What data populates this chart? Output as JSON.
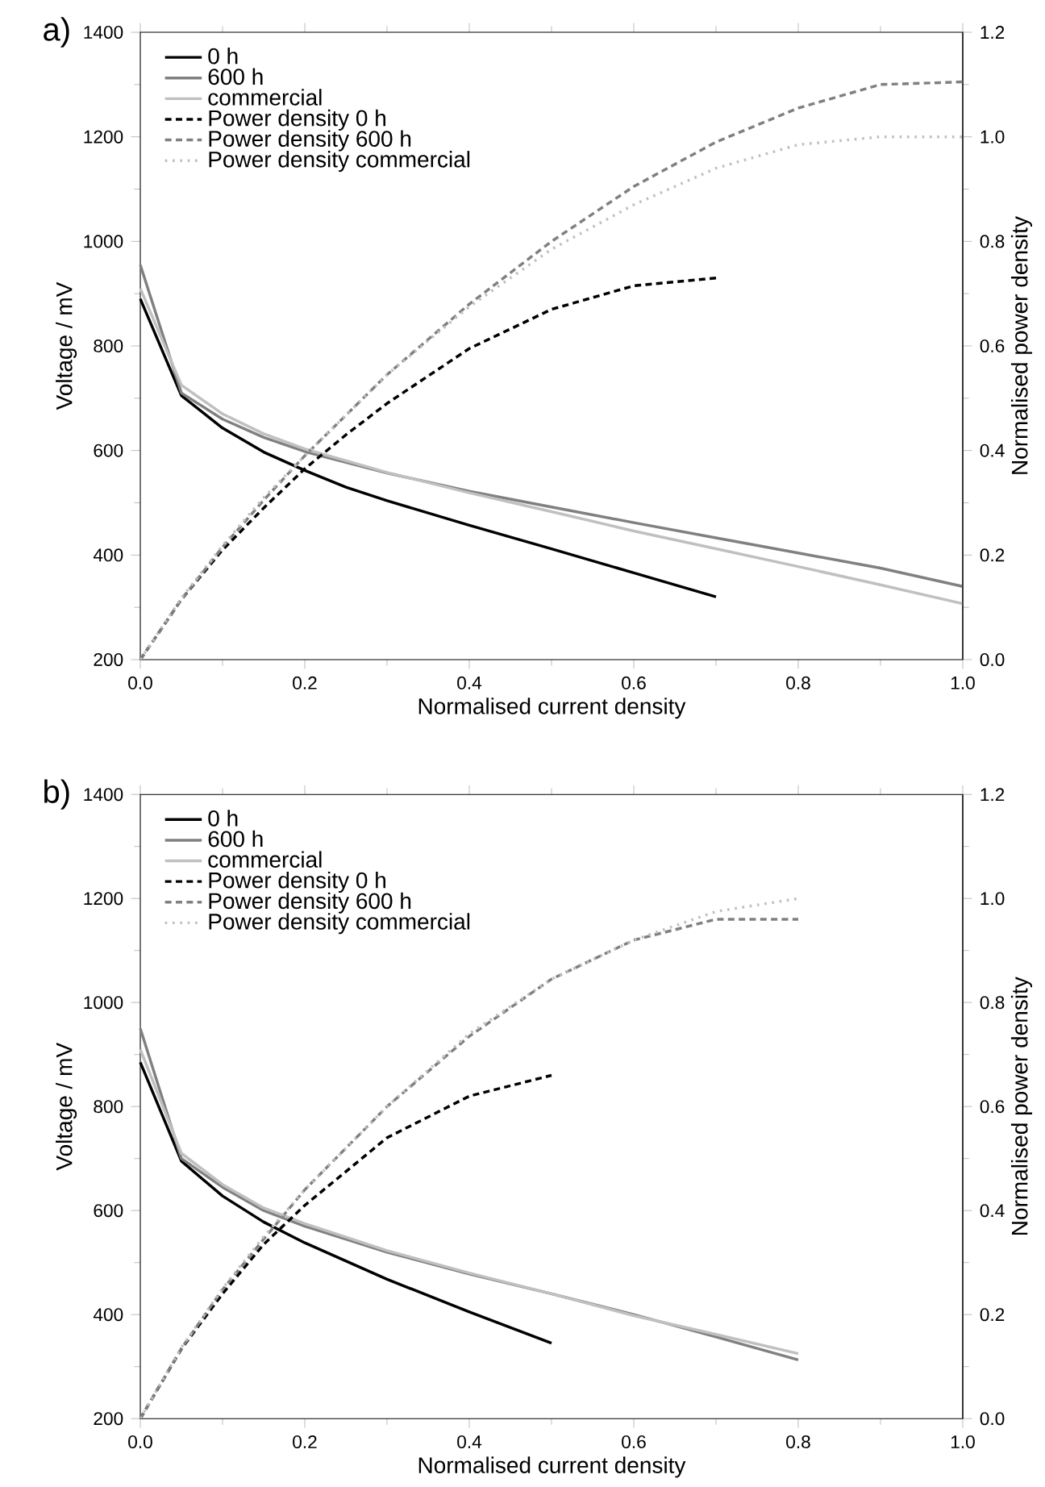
{
  "chart_data": [
    {
      "type": "line",
      "annotations": [
        "a)"
      ],
      "xlabel": "Normalised current density",
      "ylabel": "Voltage / mV",
      "y2label": "Normalised power density",
      "legend": "top left",
      "xlim": [
        0,
        1
      ],
      "ylim": [
        200,
        1400
      ],
      "y2lim": [
        0,
        1.2
      ],
      "xticks": [
        {
          "value": 0,
          "label": "0.0"
        },
        {
          "value": 0.2,
          "label": "0.2"
        },
        {
          "value": 0.4,
          "label": "0.4"
        },
        {
          "value": 0.6,
          "label": "0.6"
        },
        {
          "value": 0.8,
          "label": "0.8"
        },
        {
          "value": 1,
          "label": "1.0"
        }
      ],
      "yticks": [
        200,
        400,
        600,
        800,
        1000,
        1200,
        1400
      ],
      "y2ticks": [
        {
          "value": 0,
          "label": "0.0"
        },
        {
          "value": 0.2,
          "label": "0.2"
        },
        {
          "value": 0.4,
          "label": "0.4"
        },
        {
          "value": 0.6,
          "label": "0.6"
        },
        {
          "value": 0.8,
          "label": "0.8"
        },
        {
          "value": 1,
          "label": "1.0"
        },
        {
          "value": 1.2,
          "label": "1.2"
        }
      ],
      "series": [
        {
          "name": "0 h",
          "color": "#000000",
          "line_style": "solid",
          "x": [
            0,
            0.05,
            0.1,
            0.15,
            0.2,
            0.25,
            0.3,
            0.4,
            0.5,
            0.6,
            0.7
          ],
          "values": [
            890,
            705,
            643,
            597,
            562,
            530,
            504,
            457,
            412,
            366,
            320
          ]
        },
        {
          "name": "600 h",
          "color": "#808080",
          "line_style": "solid",
          "x": [
            0,
            0.05,
            0.1,
            0.15,
            0.2,
            0.3,
            0.4,
            0.5,
            0.6,
            0.7,
            0.8,
            0.9,
            1.0
          ],
          "values": [
            955,
            710,
            660,
            625,
            598,
            557,
            522,
            492,
            462,
            433,
            404,
            375,
            340
          ]
        },
        {
          "name": "commercial",
          "color": "#c0c0c0",
          "line_style": "solid",
          "x": [
            0,
            0.05,
            0.1,
            0.15,
            0.2,
            0.3,
            0.4,
            0.5,
            0.6,
            0.7,
            0.8,
            0.9,
            1.0
          ],
          "values": [
            910,
            725,
            670,
            632,
            603,
            558,
            519,
            483,
            446,
            412,
            378,
            343,
            307
          ]
        },
        {
          "name": "Power density 0 h",
          "color": "#000000",
          "line_style": "dashed",
          "axis": "y2",
          "x": [
            0,
            0.05,
            0.1,
            0.15,
            0.2,
            0.25,
            0.3,
            0.4,
            0.5,
            0.6,
            0.7
          ],
          "values": [
            0,
            0.115,
            0.21,
            0.29,
            0.365,
            0.43,
            0.49,
            0.595,
            0.67,
            0.715,
            0.73
          ]
        },
        {
          "name": "Power density 600 h",
          "color": "#808080",
          "line_style": "dashed",
          "axis": "y2",
          "x": [
            0,
            0.05,
            0.1,
            0.15,
            0.2,
            0.3,
            0.4,
            0.5,
            0.6,
            0.7,
            0.8,
            0.9,
            1.0
          ],
          "values": [
            0,
            0.115,
            0.215,
            0.305,
            0.39,
            0.545,
            0.68,
            0.8,
            0.905,
            0.99,
            1.055,
            1.1,
            1.105
          ]
        },
        {
          "name": "Power density commercial",
          "color": "#c0c0c0",
          "line_style": "dotted",
          "axis": "y2",
          "x": [
            0,
            0.05,
            0.1,
            0.15,
            0.2,
            0.3,
            0.4,
            0.5,
            0.6,
            0.7,
            0.8,
            0.9,
            1.0
          ],
          "values": [
            0,
            0.118,
            0.218,
            0.31,
            0.39,
            0.545,
            0.675,
            0.785,
            0.87,
            0.94,
            0.985,
            1.0,
            1.0
          ]
        }
      ]
    },
    {
      "type": "line",
      "annotations": [
        "b)"
      ],
      "xlabel": "Normalised current density",
      "ylabel": "Voltage / mV",
      "y2label": "Normalised power density",
      "legend": "top left",
      "xlim": [
        0,
        1
      ],
      "ylim": [
        200,
        1400
      ],
      "y2lim": [
        0,
        1.2
      ],
      "xticks": [
        {
          "value": 0,
          "label": "0.0"
        },
        {
          "value": 0.2,
          "label": "0.2"
        },
        {
          "value": 0.4,
          "label": "0.4"
        },
        {
          "value": 0.6,
          "label": "0.6"
        },
        {
          "value": 0.8,
          "label": "0.8"
        },
        {
          "value": 1,
          "label": "1.0"
        }
      ],
      "yticks": [
        200,
        400,
        600,
        800,
        1000,
        1200,
        1400
      ],
      "y2ticks": [
        {
          "value": 0,
          "label": "0.0"
        },
        {
          "value": 0.2,
          "label": "0.2"
        },
        {
          "value": 0.4,
          "label": "0.4"
        },
        {
          "value": 0.6,
          "label": "0.6"
        },
        {
          "value": 0.8,
          "label": "0.8"
        },
        {
          "value": 1,
          "label": "1.0"
        },
        {
          "value": 1.2,
          "label": "1.2"
        }
      ],
      "series": [
        {
          "name": "0 h",
          "color": "#000000",
          "line_style": "solid",
          "x": [
            0,
            0.05,
            0.1,
            0.15,
            0.2,
            0.3,
            0.4,
            0.5
          ],
          "values": [
            885,
            695,
            628,
            578,
            538,
            468,
            405,
            345
          ]
        },
        {
          "name": "600 h",
          "color": "#808080",
          "line_style": "solid",
          "x": [
            0,
            0.05,
            0.1,
            0.15,
            0.2,
            0.3,
            0.4,
            0.5,
            0.6,
            0.7,
            0.8
          ],
          "values": [
            950,
            700,
            645,
            600,
            570,
            520,
            478,
            440,
            400,
            357,
            313
          ]
        },
        {
          "name": "commercial",
          "color": "#c0c0c0",
          "line_style": "solid",
          "x": [
            0,
            0.05,
            0.1,
            0.15,
            0.2,
            0.3,
            0.4,
            0.5,
            0.6,
            0.7,
            0.8
          ],
          "values": [
            910,
            710,
            650,
            605,
            575,
            523,
            480,
            440,
            398,
            362,
            325
          ]
        },
        {
          "name": "Power density 0 h",
          "color": "#000000",
          "line_style": "dashed",
          "axis": "y2",
          "x": [
            0,
            0.05,
            0.1,
            0.15,
            0.2,
            0.3,
            0.4,
            0.5
          ],
          "values": [
            0,
            0.134,
            0.24,
            0.335,
            0.41,
            0.54,
            0.62,
            0.66
          ]
        },
        {
          "name": "Power density 600 h",
          "color": "#808080",
          "line_style": "dashed",
          "axis": "y2",
          "x": [
            0,
            0.05,
            0.1,
            0.15,
            0.2,
            0.3,
            0.4,
            0.5,
            0.6,
            0.7,
            0.8
          ],
          "values": [
            0,
            0.135,
            0.248,
            0.345,
            0.44,
            0.6,
            0.735,
            0.845,
            0.92,
            0.96,
            0.96
          ]
        },
        {
          "name": "Power density commercial",
          "color": "#c0c0c0",
          "line_style": "dotted",
          "axis": "y2",
          "x": [
            0,
            0.05,
            0.1,
            0.15,
            0.2,
            0.3,
            0.4,
            0.5,
            0.6,
            0.7,
            0.8
          ],
          "values": [
            0,
            0.137,
            0.25,
            0.35,
            0.44,
            0.6,
            0.74,
            0.845,
            0.92,
            0.975,
            1.0
          ]
        }
      ]
    }
  ]
}
